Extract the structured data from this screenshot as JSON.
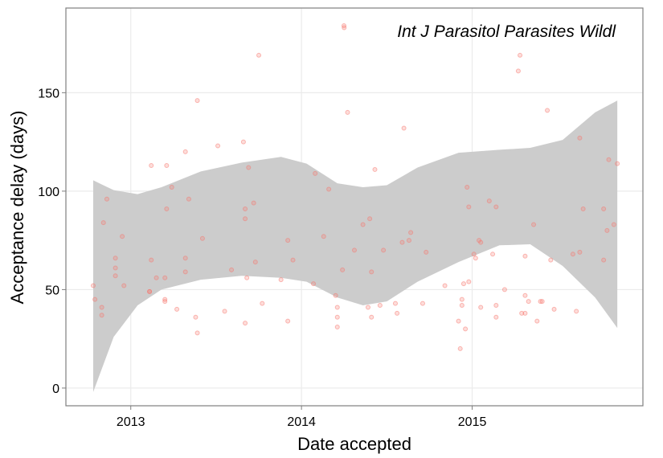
{
  "chart_data": {
    "type": "scatter",
    "x_label": "Date accepted",
    "y_label": "Acceptance delay (days)",
    "xlim": [
      2012.62,
      2016.0
    ],
    "ylim": [
      -9,
      193
    ],
    "xticks": [
      2013,
      2014,
      2015
    ],
    "yticks": [
      0,
      50,
      100,
      150
    ],
    "grid": true,
    "legend": "top-right",
    "series": [
      {
        "name": "Int J Parasitol Parasites Wildl",
        "color": "#f8766d",
        "x": [
          2012.78,
          2012.79,
          2012.83,
          2012.83,
          2012.84,
          2012.86,
          2012.91,
          2012.91,
          2012.91,
          2012.95,
          2012.96,
          2013.11,
          2013.11,
          2013.12,
          2013.12,
          2013.15,
          2013.2,
          2013.2,
          2013.2,
          2013.21,
          2013.21,
          2013.24,
          2013.27,
          2013.32,
          2013.32,
          2013.32,
          2013.34,
          2013.38,
          2013.39,
          2013.39,
          2013.42,
          2013.51,
          2013.55,
          2013.59,
          2013.66,
          2013.67,
          2013.67,
          2013.67,
          2013.68,
          2013.69,
          2013.72,
          2013.73,
          2013.75,
          2013.77,
          2013.88,
          2013.92,
          2013.92,
          2013.95,
          2014.07,
          2014.08,
          2014.13,
          2014.16,
          2014.2,
          2014.21,
          2014.21,
          2014.21,
          2014.24,
          2014.25,
          2014.27,
          2014.31,
          2014.36,
          2014.39,
          2014.4,
          2014.41,
          2014.41,
          2014.43,
          2014.46,
          2014.48,
          2014.55,
          2014.56,
          2014.59,
          2014.6,
          2014.63,
          2014.64,
          2014.71,
          2014.73,
          2014.84,
          2014.92,
          2014.93,
          2014.94,
          2014.94,
          2014.95,
          2014.96,
          2014.97,
          2014.98,
          2014.98,
          2015.01,
          2015.02,
          2015.04,
          2015.05,
          2015.05,
          2015.1,
          2015.12,
          2015.14,
          2015.14,
          2015.14,
          2015.19,
          2015.27,
          2015.28,
          2015.29,
          2015.31,
          2015.31,
          2015.31,
          2015.33,
          2015.36,
          2015.38,
          2015.4,
          2015.41,
          2015.44,
          2015.46,
          2015.48,
          2015.59,
          2015.61,
          2015.63,
          2015.63,
          2015.65,
          2015.77,
          2015.77,
          2015.79,
          2015.8,
          2015.83,
          2015.85
        ],
        "values": [
          52,
          45,
          41,
          37,
          84,
          96,
          66,
          61,
          57,
          77,
          52,
          49,
          49,
          113,
          65,
          56,
          45,
          44,
          56,
          91,
          113,
          102,
          40,
          66,
          59,
          120,
          96,
          36,
          146,
          28,
          76,
          123,
          39,
          60,
          125,
          91,
          86,
          33,
          56,
          112,
          94,
          64,
          169,
          43,
          55,
          75,
          34,
          65,
          53,
          109,
          77,
          101,
          47,
          41,
          36,
          31,
          60,
          183,
          140,
          70,
          83,
          41,
          86,
          36,
          59,
          111,
          42,
          70,
          43,
          38,
          74,
          132,
          75,
          79,
          43,
          69,
          52,
          34,
          20,
          45,
          42,
          53,
          30,
          102,
          92,
          54,
          68,
          66,
          75,
          74,
          41,
          95,
          68,
          36,
          42,
          92,
          50,
          161,
          169,
          38,
          38,
          67,
          47,
          44,
          83,
          34,
          44,
          44,
          141,
          65,
          40,
          68,
          39,
          127,
          69,
          91,
          91,
          65,
          80,
          116,
          83,
          114
        ]
      }
    ],
    "band": {
      "color": "#cccccc",
      "x": [
        2012.78,
        2012.9,
        2013.04,
        2013.18,
        2013.41,
        2013.65,
        2013.88,
        2014.03,
        2014.21,
        2014.36,
        2014.5,
        2014.68,
        2014.92,
        2015.16,
        2015.34,
        2015.53,
        2015.72,
        2015.85
      ],
      "lower": [
        -2,
        26,
        42,
        50,
        55,
        57,
        56,
        54,
        46,
        42,
        44,
        54,
        64,
        72.5,
        73,
        62,
        46,
        30.5
      ],
      "upper": [
        105.5,
        100.5,
        98.5,
        102,
        110,
        114.5,
        117.4,
        114,
        104,
        102,
        103,
        112,
        119.5,
        121,
        122,
        126,
        140,
        146
      ]
    }
  }
}
